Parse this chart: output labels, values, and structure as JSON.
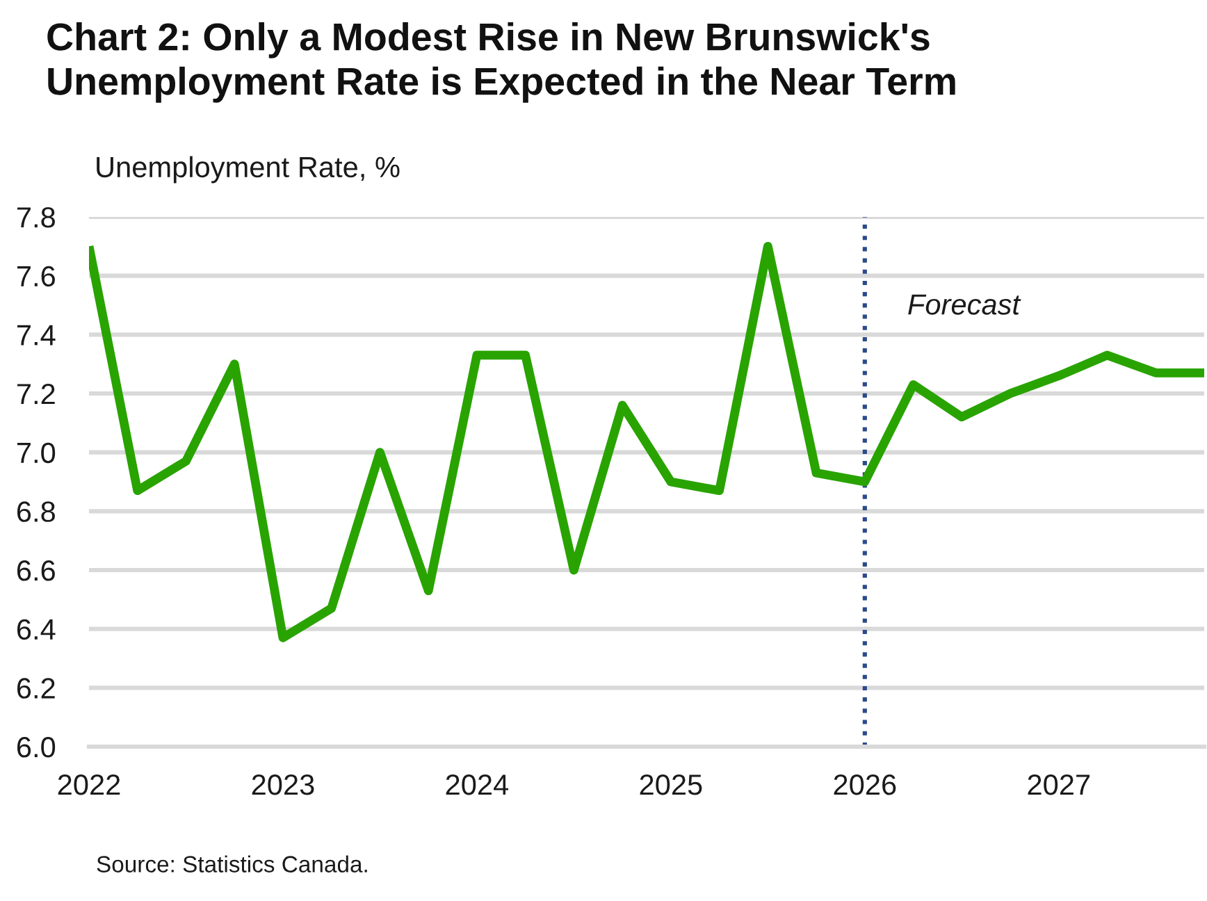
{
  "chart_data": {
    "type": "line",
    "title": "Chart 2: Only a Modest Rise in New Brunswick's Unemployment Rate is Expected in the Near Term",
    "ylabel": "Unemployment Rate, %",
    "annotations": [
      "Source: Statistics Canada."
    ],
    "x": [
      2022,
      2022.25,
      2022.5,
      2022.75,
      2023,
      2023.25,
      2023.5,
      2023.75,
      2024,
      2024.25,
      2024.5,
      2024.75,
      2025,
      2025.25,
      2025.5,
      2025.75,
      2026,
      2026.25,
      2026.5,
      2026.75,
      2027,
      2027.25,
      2027.5,
      2027.75
    ],
    "values": [
      7.7,
      6.87,
      6.97,
      7.3,
      6.37,
      6.47,
      7.0,
      6.53,
      7.33,
      7.33,
      6.6,
      7.16,
      6.9,
      6.87,
      7.7,
      6.93,
      6.9,
      7.23,
      7.12,
      7.2,
      7.26,
      7.33,
      7.27,
      7.27
    ],
    "color": "#29a300",
    "line_style": "solid",
    "marker": "none",
    "xlim": [
      2022,
      2027.75
    ],
    "xticks": [
      2022,
      2023,
      2024,
      2025,
      2026,
      2027
    ],
    "ylim": [
      6.0,
      7.8
    ],
    "yticks": [
      {
        "value": 6,
        "label": "6.0"
      },
      6.2,
      6.4,
      6.6,
      6.8,
      {
        "value": 7,
        "label": "7.0"
      },
      7.2,
      7.4,
      7.6,
      7.8
    ],
    "grid": "y",
    "ref_lines": [
      {
        "axis": "x",
        "value": 2026,
        "label": "Forecast",
        "color": "#2b4a8a",
        "line_style": "dotted"
      }
    ]
  }
}
